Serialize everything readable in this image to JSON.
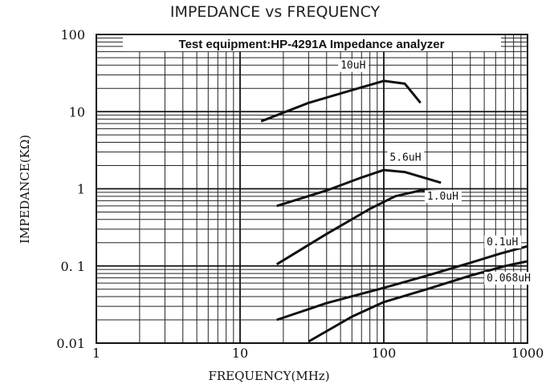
{
  "chart_data": {
    "type": "line",
    "title": "IMPEDANCE vs FREQUENCY",
    "xlabel": "FREQUENCY(MHz)",
    "ylabel": "IMPEDANCE(KΩ)",
    "xscale": "log",
    "yscale": "log",
    "xlim": [
      1,
      1000
    ],
    "ylim": [
      0.01,
      100
    ],
    "grid": true,
    "x_ticks": [
      "1",
      "10",
      "100",
      "1000"
    ],
    "y_ticks": [
      "0.01",
      "0. 1",
      "1",
      "10",
      "100"
    ],
    "annotation": "Test equipment:HP-4291A Impedance analyzer",
    "series": [
      {
        "name": "10uH",
        "x": [
          14,
          30,
          60,
          100,
          140,
          180
        ],
        "y": [
          7.5,
          13,
          19,
          25,
          23,
          13
        ]
      },
      {
        "name": "5.6uH",
        "x": [
          18,
          40,
          70,
          100,
          140,
          250
        ],
        "y": [
          0.6,
          0.95,
          1.4,
          1.75,
          1.65,
          1.2
        ]
      },
      {
        "name": "1.0uH",
        "x": [
          18,
          40,
          80,
          120,
          180,
          250,
          340
        ],
        "y": [
          0.105,
          0.26,
          0.55,
          0.8,
          0.95,
          0.92,
          0.78
        ]
      },
      {
        "name": "0.1uH",
        "x": [
          18,
          40,
          100,
          200,
          400,
          650,
          1000
        ],
        "y": [
          0.02,
          0.033,
          0.052,
          0.075,
          0.11,
          0.145,
          0.18
        ]
      },
      {
        "name": "0.068uH",
        "x": [
          30,
          60,
          100,
          200,
          400,
          700,
          1000
        ],
        "y": [
          0.0105,
          0.022,
          0.034,
          0.05,
          0.075,
          0.1,
          0.115
        ]
      }
    ],
    "series_labels": [
      "10uH",
      "5.6uH",
      "1.0uH",
      "0.1uH",
      "0.068uH"
    ]
  }
}
